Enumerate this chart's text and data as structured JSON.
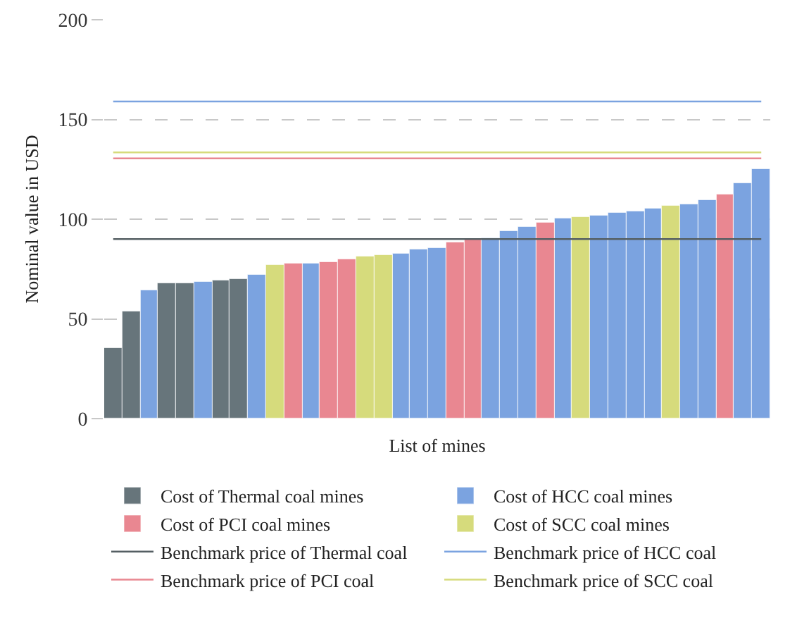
{
  "chart_data": {
    "type": "bar",
    "xlabel": "List of mines",
    "ylabel": "Nominal value in USD",
    "categories": [
      null,
      null,
      null,
      null,
      null,
      null,
      null,
      null,
      null,
      null,
      null,
      null,
      null,
      null,
      null,
      null,
      null,
      null,
      null,
      null,
      null,
      null,
      null,
      null,
      null,
      null,
      null,
      null,
      null,
      null,
      null,
      null,
      null,
      null,
      null,
      null,
      null
    ],
    "series": [
      {
        "name": "Cost of Thermal coal mines",
        "color": "#67757b",
        "values": [
          35.4,
          53.8,
          null,
          67.5,
          67.5,
          null,
          69.1,
          70.3,
          null,
          null,
          null,
          null,
          null,
          null,
          null,
          null,
          null,
          null,
          null,
          null,
          null,
          null,
          null,
          null,
          null,
          null,
          null,
          null,
          null,
          null,
          null,
          null,
          null,
          null,
          null,
          null,
          null
        ]
      },
      {
        "name": "Cost of HCC coal mines",
        "color": "#7ba3e0",
        "values": [
          null,
          null,
          64.4,
          null,
          null,
          68.4,
          null,
          null,
          72.2,
          null,
          null,
          77.6,
          null,
          null,
          null,
          null,
          82.5,
          84.7,
          85.6,
          null,
          null,
          90.6,
          93.9,
          95.8,
          null,
          100.5,
          null,
          101.9,
          103.5,
          104.2,
          105.4,
          null,
          107.1,
          109.7,
          null,
          118.2,
          124.8
        ]
      },
      {
        "name": "Cost of PCI coal mines",
        "color": "#e98791",
        "values": [
          null,
          null,
          null,
          null,
          null,
          null,
          null,
          null,
          null,
          null,
          77.4,
          null,
          78.1,
          79.7,
          null,
          null,
          null,
          null,
          null,
          88.2,
          89.9,
          null,
          null,
          null,
          98.1,
          null,
          null,
          null,
          null,
          null,
          null,
          null,
          null,
          null,
          112.7,
          null,
          null
        ]
      },
      {
        "name": "Cost of SCC coal mines",
        "color": "#d6db7c",
        "values": [
          null,
          null,
          null,
          null,
          null,
          null,
          null,
          null,
          null,
          77.1,
          null,
          null,
          null,
          null,
          81.4,
          81.8,
          null,
          null,
          null,
          null,
          null,
          null,
          null,
          null,
          null,
          null,
          101.4,
          null,
          null,
          null,
          null,
          106.6,
          null,
          null,
          null,
          null,
          null
        ]
      }
    ],
    "ref_lines": [
      {
        "axis": "y",
        "value": 90,
        "label": "Benchmark price of Thermal coal",
        "color": "#555f63"
      },
      {
        "axis": "y",
        "value": 159,
        "label": "Benchmark price of HCC coal",
        "color": "#7ba3e0"
      },
      {
        "axis": "y",
        "value": 130.5,
        "label": "Benchmark price of PCI coal",
        "color": "#e98791"
      },
      {
        "axis": "y",
        "value": 133.5,
        "label": "Benchmark price of SCC coal",
        "color": "#d6db7c"
      }
    ],
    "ylim": [
      0,
      200
    ],
    "yticks": [
      0,
      50,
      100,
      150,
      200
    ],
    "grid": "y",
    "legend": "bottom",
    "tick_labels": "y"
  }
}
